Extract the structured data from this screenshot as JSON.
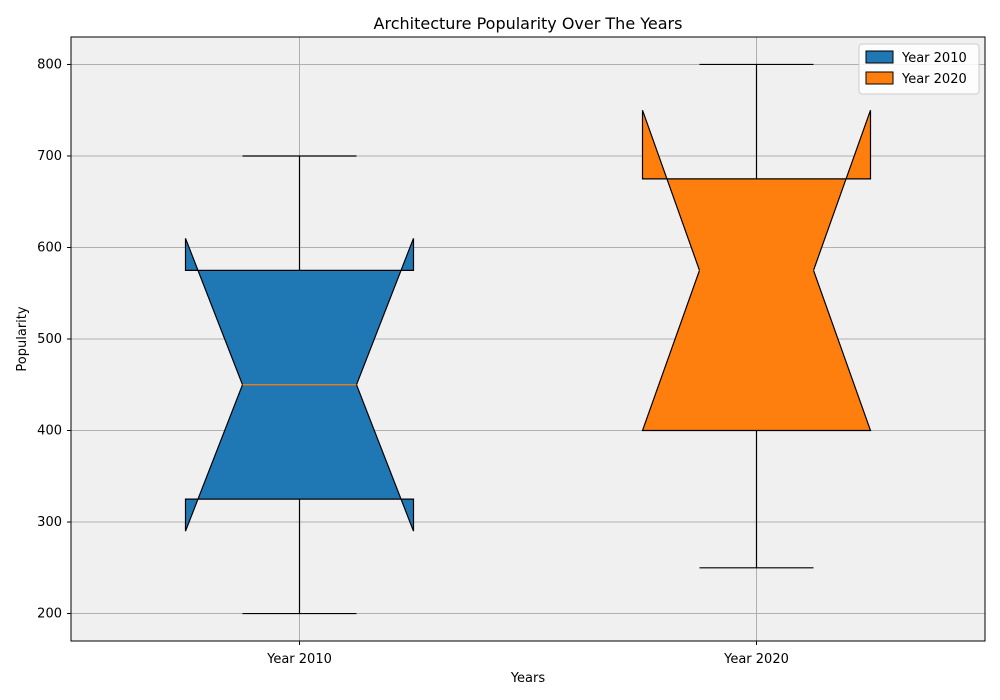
{
  "chart_data": {
    "type": "boxplot",
    "notched": true,
    "title": "Architecture Popularity Over The Years",
    "xlabel": "Years",
    "ylabel": "Popularity",
    "ylim": [
      170,
      830
    ],
    "yticks": [
      200,
      300,
      400,
      500,
      600,
      700,
      800
    ],
    "grid": true,
    "legend_position": "top-right",
    "categories": [
      "Year 2010",
      "Year 2020"
    ],
    "series": [
      {
        "name": "Year 2010",
        "color": "#1f77b4",
        "whisker_low": 200,
        "q1": 325,
        "median": 450,
        "q3": 575,
        "whisker_high": 700,
        "notch_low": 290,
        "notch_high": 610
      },
      {
        "name": "Year 2020",
        "color": "#ff7f0e",
        "whisker_low": 250,
        "q1": 400,
        "median": 575,
        "q3": 675,
        "whisker_high": 800,
        "notch_low": 400,
        "notch_high": 750
      }
    ],
    "plot_background": "#f0f0f0",
    "median_color": "#ff7f0e"
  }
}
